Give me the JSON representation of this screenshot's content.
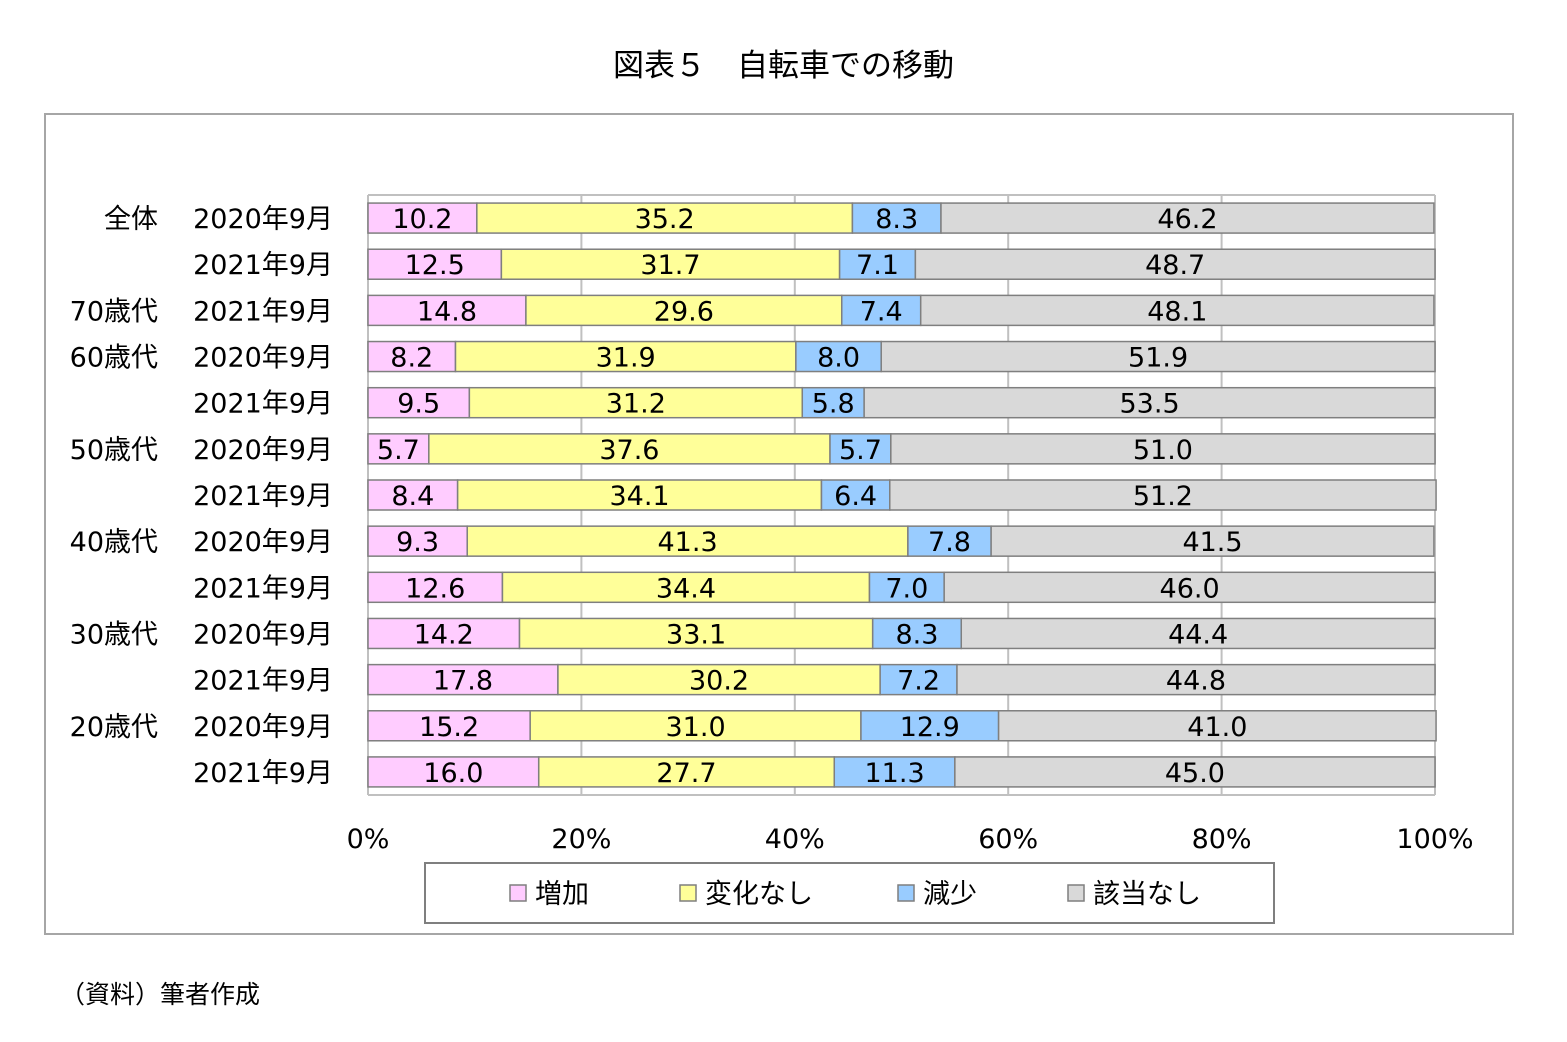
{
  "title": "図表５　自転車での移動",
  "source": "（資料）筆者作成",
  "colors": {
    "増加": "#ffccff",
    "変化なし": "#ffff99",
    "減少": "#99ccff",
    "該当なし": "#d9d9d9"
  },
  "chart_data": {
    "type": "bar",
    "orientation": "horizontal",
    "stacked": "percent",
    "title": "図表５　自転車での移動",
    "categories": [
      {
        "group": "全体",
        "period": "2020年9月"
      },
      {
        "group": "",
        "period": "2021年9月"
      },
      {
        "group": "70歳代",
        "period": "2021年9月"
      },
      {
        "group": "60歳代",
        "period": "2020年9月"
      },
      {
        "group": "",
        "period": "2021年9月"
      },
      {
        "group": "50歳代",
        "period": "2020年9月"
      },
      {
        "group": "",
        "period": "2021年9月"
      },
      {
        "group": "40歳代",
        "period": "2020年9月"
      },
      {
        "group": "",
        "period": "2021年9月"
      },
      {
        "group": "30歳代",
        "period": "2020年9月"
      },
      {
        "group": "",
        "period": "2021年9月"
      },
      {
        "group": "20歳代",
        "period": "2020年9月"
      },
      {
        "group": "",
        "period": "2021年9月"
      }
    ],
    "series": [
      {
        "name": "増加",
        "values": [
          10.2,
          12.5,
          14.8,
          8.2,
          9.5,
          5.7,
          8.4,
          9.3,
          12.6,
          14.2,
          17.8,
          15.2,
          16.0
        ]
      },
      {
        "name": "変化なし",
        "values": [
          35.2,
          31.7,
          29.6,
          31.9,
          31.2,
          37.6,
          34.1,
          41.3,
          34.4,
          33.1,
          30.2,
          31.0,
          27.7
        ]
      },
      {
        "name": "減少",
        "values": [
          8.3,
          7.1,
          7.4,
          8.0,
          5.8,
          5.7,
          6.4,
          7.8,
          7.0,
          8.3,
          7.2,
          12.9,
          11.3
        ]
      },
      {
        "name": "該当なし",
        "values": [
          46.2,
          48.7,
          48.1,
          51.9,
          53.5,
          51.0,
          51.2,
          41.5,
          46.0,
          44.4,
          44.8,
          41.0,
          45.0
        ]
      }
    ],
    "xticks": [
      "0%",
      "20%",
      "40%",
      "60%",
      "80%",
      "100%"
    ],
    "xlim": [
      0,
      100
    ],
    "grid": true,
    "legend": "bottom"
  }
}
